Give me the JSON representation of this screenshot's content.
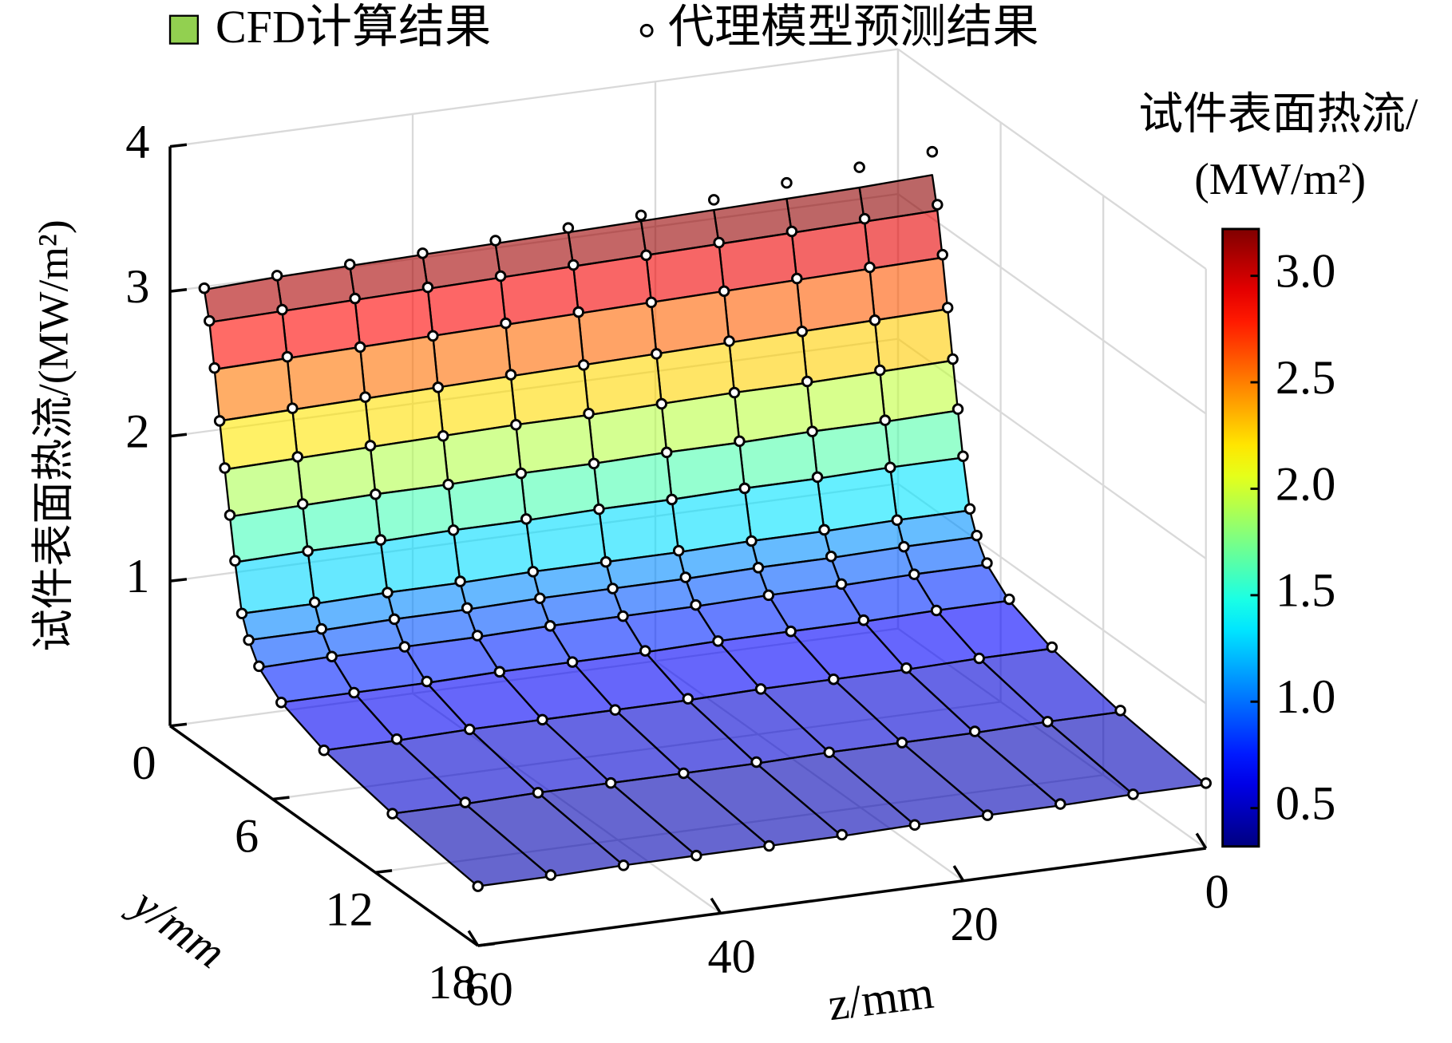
{
  "chart_data": {
    "type": "surface3d",
    "series": [
      {
        "name": "CFD计算结果",
        "color": "#92d050",
        "values": [
          [
            3.3,
            3.28,
            3.27,
            3.26,
            3.25,
            3.24,
            3.23,
            3.22,
            3.21,
            3.2,
            3.18
          ],
          [
            3.08,
            3.07,
            3.06,
            3.05,
            3.04,
            3.03,
            3.02,
            3.01,
            3.0,
            2.99,
            2.98
          ],
          [
            2.78,
            2.77,
            2.76,
            2.75,
            2.74,
            2.73,
            2.72,
            2.71,
            2.7,
            2.69,
            2.68
          ],
          [
            2.45,
            2.44,
            2.43,
            2.42,
            2.41,
            2.4,
            2.39,
            2.38,
            2.37,
            2.36,
            2.35
          ],
          [
            2.12,
            2.11,
            2.1,
            2.1,
            2.09,
            2.08,
            2.08,
            2.07,
            2.06,
            2.05,
            2.04
          ],
          [
            1.8,
            1.79,
            1.79,
            1.78,
            1.78,
            1.77,
            1.77,
            1.76,
            1.76,
            1.75,
            1.74
          ],
          [
            1.5,
            1.5,
            1.49,
            1.49,
            1.48,
            1.48,
            1.47,
            1.47,
            1.46,
            1.46,
            1.45
          ],
          [
            1.17,
            1.17,
            1.16,
            1.16,
            1.15,
            1.15,
            1.15,
            1.14,
            1.14,
            1.13,
            1.13
          ],
          [
            1.02,
            1.02,
            1.01,
            1.01,
            1.0,
            1.0,
            1.0,
            0.99,
            0.99,
            0.98,
            0.98
          ],
          [
            0.88,
            0.88,
            0.87,
            0.87,
            0.86,
            0.86,
            0.86,
            0.85,
            0.85,
            0.85,
            0.84
          ],
          [
            0.74,
            0.74,
            0.73,
            0.73,
            0.73,
            0.72,
            0.72,
            0.72,
            0.71,
            0.71,
            0.71
          ],
          [
            0.62,
            0.62,
            0.61,
            0.61,
            0.61,
            0.6,
            0.6,
            0.6,
            0.6,
            0.59,
            0.59
          ],
          [
            0.52,
            0.52,
            0.51,
            0.51,
            0.51,
            0.5,
            0.5,
            0.5,
            0.5,
            0.49,
            0.49
          ],
          [
            0.44,
            0.44,
            0.43,
            0.43,
            0.43,
            0.42,
            0.42,
            0.42,
            0.42,
            0.41,
            0.41
          ]
        ]
      },
      {
        "name": "代理模型预测结果",
        "color": "#ffffff",
        "values": [
          [
            3.46,
            3.42,
            3.38,
            3.33,
            3.29,
            3.27,
            3.25,
            3.23,
            3.22,
            3.21,
            3.19
          ],
          [
            3.12,
            3.09,
            3.07,
            3.06,
            3.04,
            3.04,
            3.03,
            3.02,
            3.01,
            3.0,
            2.99
          ],
          [
            2.8,
            2.78,
            2.77,
            2.75,
            2.74,
            2.74,
            2.73,
            2.71,
            2.7,
            2.7,
            2.69
          ],
          [
            2.46,
            2.44,
            2.43,
            2.43,
            2.41,
            2.4,
            2.4,
            2.38,
            2.38,
            2.37,
            2.35
          ],
          [
            2.13,
            2.12,
            2.11,
            2.1,
            2.09,
            2.09,
            2.08,
            2.07,
            2.07,
            2.06,
            2.05
          ],
          [
            1.81,
            1.8,
            1.79,
            1.79,
            1.78,
            1.77,
            1.77,
            1.76,
            1.76,
            1.76,
            1.75
          ],
          [
            1.51,
            1.5,
            1.5,
            1.49,
            1.48,
            1.48,
            1.48,
            1.47,
            1.47,
            1.46,
            1.46
          ],
          [
            1.18,
            1.17,
            1.17,
            1.16,
            1.16,
            1.15,
            1.15,
            1.15,
            1.14,
            1.14,
            1.13
          ],
          [
            1.03,
            1.02,
            1.02,
            1.01,
            1.01,
            1.0,
            1.0,
            1.0,
            0.99,
            0.99,
            0.98
          ],
          [
            0.89,
            0.88,
            0.88,
            0.87,
            0.87,
            0.86,
            0.86,
            0.86,
            0.85,
            0.85,
            0.85
          ],
          [
            0.75,
            0.74,
            0.74,
            0.73,
            0.73,
            0.73,
            0.72,
            0.72,
            0.72,
            0.71,
            0.71
          ],
          [
            0.63,
            0.62,
            0.62,
            0.61,
            0.61,
            0.61,
            0.6,
            0.6,
            0.6,
            0.6,
            0.59
          ],
          [
            0.53,
            0.52,
            0.52,
            0.51,
            0.51,
            0.51,
            0.5,
            0.5,
            0.5,
            0.5,
            0.49
          ],
          [
            0.45,
            0.44,
            0.44,
            0.43,
            0.43,
            0.43,
            0.42,
            0.42,
            0.42,
            0.42,
            0.41
          ]
        ]
      }
    ],
    "y": [
      2,
      2.3,
      2.6,
      2.9,
      3.2,
      3.5,
      3.8,
      4.2,
      4.6,
      5.2,
      6.5,
      9,
      13,
      18
    ],
    "z": [
      0,
      6,
      12,
      18,
      24,
      30,
      36,
      42,
      48,
      54,
      60
    ],
    "ylabel": "y/mm",
    "zlabel": "z/mm",
    "vlabel": "试件表面热流/(MW/m²)",
    "ylim": [
      0,
      18
    ],
    "yticks": [
      0,
      6,
      12,
      18
    ],
    "zlim": [
      0,
      60
    ],
    "zticks": [
      0,
      20,
      40,
      60
    ],
    "vlim": [
      0,
      4
    ],
    "vticks": [
      1,
      2,
      3,
      4
    ],
    "grid": true,
    "colorbar": {
      "title": [
        "试件表面热流/",
        "(MW/m²)"
      ],
      "colormap": "jet",
      "clim": [
        0.32,
        3.22
      ],
      "ticks": [
        {
          "value": 0.5,
          "label": "0.5"
        },
        {
          "value": 1,
          "label": "1.0"
        },
        {
          "value": 1.5,
          "label": "1.5"
        },
        {
          "value": 2,
          "label": "2.0"
        },
        {
          "value": 2.5,
          "label": "2.5"
        },
        {
          "value": 3,
          "label": "3.0"
        }
      ]
    }
  }
}
